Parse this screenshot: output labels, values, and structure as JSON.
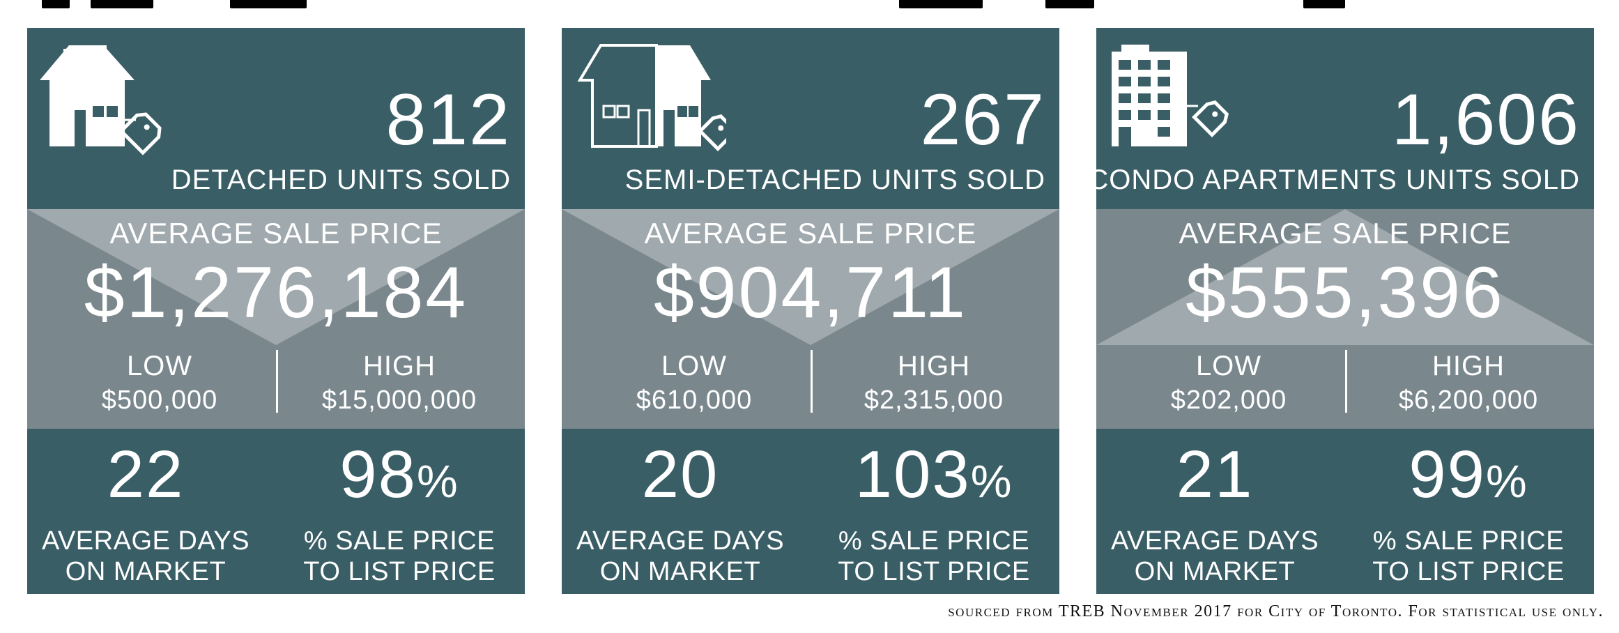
{
  "cards": [
    {
      "icon": "detached-house-icon",
      "units_sold": "812",
      "units_label": "DETACHED UNITS SOLD",
      "avg_label": "AVERAGE SALE PRICE",
      "avg_price": "$1,276,184",
      "low_label": "LOW",
      "low_value": "$500,000",
      "high_label": "HIGH",
      "high_value": "$15,000,000",
      "days_value": "22",
      "days_label_1": "AVERAGE DAYS",
      "days_label_2": "ON MARKET",
      "pct_value": "98",
      "pct_sign": "%",
      "pct_label_1": "% SALE PRICE",
      "pct_label_2": "TO LIST PRICE"
    },
    {
      "icon": "semi-detached-house-icon",
      "units_sold": "267",
      "units_label": "SEMI-DETACHED UNITS SOLD",
      "avg_label": "AVERAGE SALE PRICE",
      "avg_price": "$904,711",
      "low_label": "LOW",
      "low_value": "$610,000",
      "high_label": "HIGH",
      "high_value": "$2,315,000",
      "days_value": "20",
      "days_label_1": "AVERAGE DAYS",
      "days_label_2": "ON MARKET",
      "pct_value": "103",
      "pct_sign": "%",
      "pct_label_1": "% SALE PRICE",
      "pct_label_2": "TO LIST PRICE"
    },
    {
      "icon": "condo-building-icon",
      "units_sold": "1,606",
      "units_label": "CONDO APARTMENTS UNITS SOLD",
      "avg_label": "AVERAGE SALE PRICE",
      "avg_price": "$555,396",
      "low_label": "LOW",
      "low_value": "$202,000",
      "high_label": "HIGH",
      "high_value": "$6,200,000",
      "days_value": "21",
      "days_label_1": "AVERAGE DAYS",
      "days_label_2": "ON MARKET",
      "pct_value": "99",
      "pct_sign": "%",
      "pct_label_1": "% SALE PRICE",
      "pct_label_2": "TO LIST PRICE"
    }
  ],
  "footer": "sourced from TREB November 2017 for City of Toronto. For statistical use only.",
  "colors": {
    "panel_dark": "#3a5e66",
    "panel_mid": "#7a888e",
    "panel_light": "#a0a9ad",
    "text": "#ffffff"
  }
}
